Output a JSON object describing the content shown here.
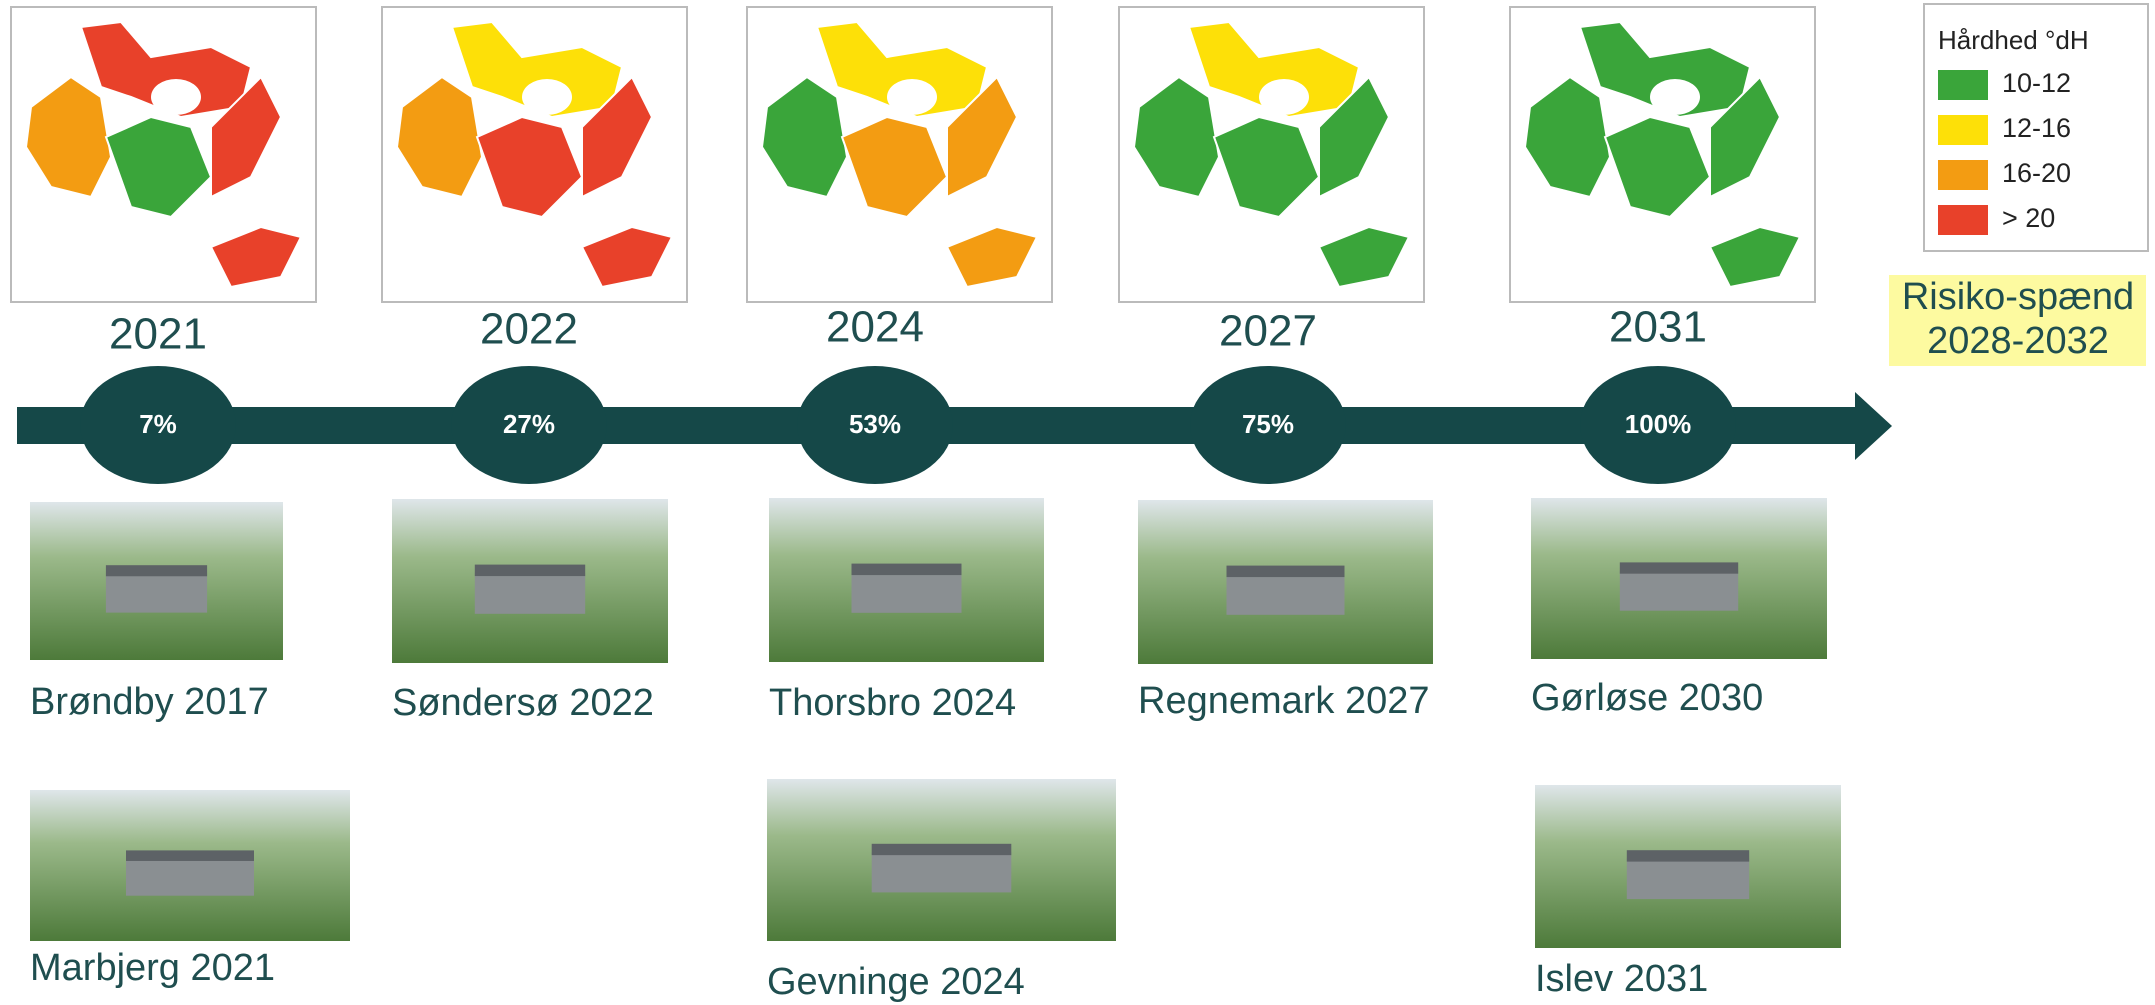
{
  "legend": {
    "title": "Hårdhed °dH",
    "items": [
      "10-12",
      "12-16",
      "16-20",
      "> 20"
    ]
  },
  "timeline": [
    {
      "year": "2021",
      "share": "7%"
    },
    {
      "year": "2022",
      "share": "27%"
    },
    {
      "year": "2024",
      "share": "53%"
    },
    {
      "year": "2027",
      "share": "75%"
    },
    {
      "year": "2031",
      "share": "100%"
    }
  ],
  "risk": [
    "Risiko-spænd",
    "2028-2032"
  ],
  "sites": [
    "Brøndby 2017",
    "Søndersø 2022",
    "Thorsbro 2024",
    "Regnemark 2027",
    "Gørløse 2030",
    "Marbjerg 2021",
    "Gevninge 2024",
    "Islev 2031"
  ]
}
